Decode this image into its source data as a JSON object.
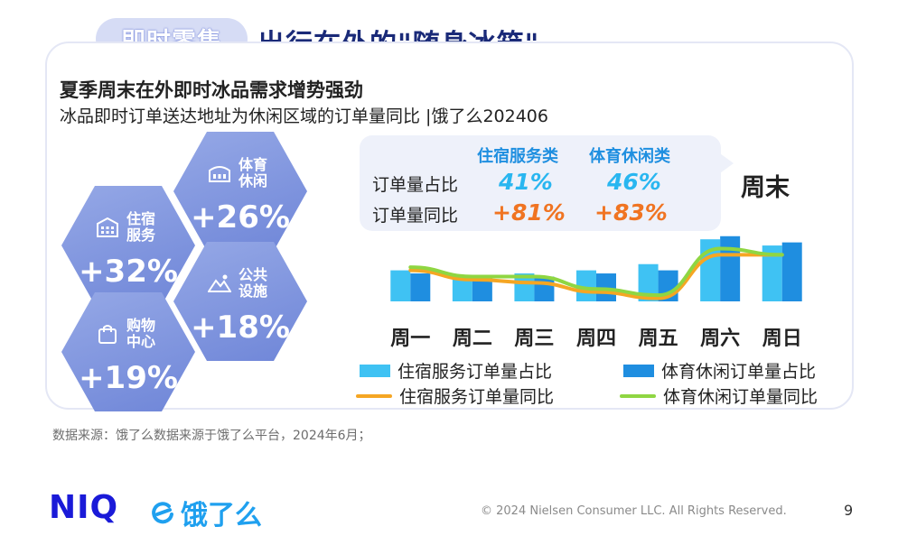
{
  "header": {
    "tag": "即时零售",
    "title": "出行在外的\"随身冰箱\""
  },
  "card": {
    "title": "夏季周末在外即时冰品需求增势强劲",
    "subtitle": "冰品即时订单送达地址为休闲区域的订单量同比 |饿了么202406"
  },
  "hexagons": [
    {
      "category": "体育休闲",
      "value": "+26%",
      "icon": "sports-building-icon"
    },
    {
      "category": "住宿服务",
      "value": "+32%",
      "icon": "hotel-icon"
    },
    {
      "category": "公共设施",
      "value": "+18%",
      "icon": "mountain-icon"
    },
    {
      "category": "购物中心",
      "value": "+19%",
      "icon": "shopping-bag-icon"
    }
  ],
  "comparison": {
    "columns": [
      "住宿服务类",
      "体育休闲类"
    ],
    "rows": [
      {
        "label": "订单量占比",
        "values": [
          "41%",
          "46%"
        ]
      },
      {
        "label": "订单量同比",
        "values": [
          "+81%",
          "+83%"
        ]
      }
    ],
    "weekend_label": "周末"
  },
  "chart_data": {
    "type": "bar",
    "categories": [
      "周一",
      "周二",
      "周三",
      "周四",
      "周五",
      "周六",
      "周日"
    ],
    "series": [
      {
        "name": "住宿服务订单量占比",
        "kind": "bar",
        "color": "#3fc2f3",
        "values": [
          10,
          8,
          9,
          10,
          12,
          20,
          18
        ]
      },
      {
        "name": "体育休闲订单量占比",
        "kind": "bar",
        "color": "#1f8ee0",
        "values": [
          9,
          8,
          8,
          9,
          10,
          21,
          19
        ]
      },
      {
        "name": "住宿服务订单量同比",
        "kind": "line",
        "color": "#f5a623",
        "values": [
          10,
          7,
          6,
          3,
          1,
          15,
          15
        ]
      },
      {
        "name": "体育休闲订单量同比",
        "kind": "line",
        "color": "#8fd642",
        "values": [
          11,
          8,
          8,
          4,
          2,
          17,
          15
        ]
      }
    ],
    "ylim": [
      0,
      25
    ]
  },
  "source": "数据来源：饿了么数据来源于饿了么平台，2024年6月；",
  "footer": {
    "niq": "NIQ",
    "eleme": "饿了么",
    "copyright": "© 2024 Nielsen Consumer LLC. All Rights Reserved.",
    "page": "9"
  }
}
